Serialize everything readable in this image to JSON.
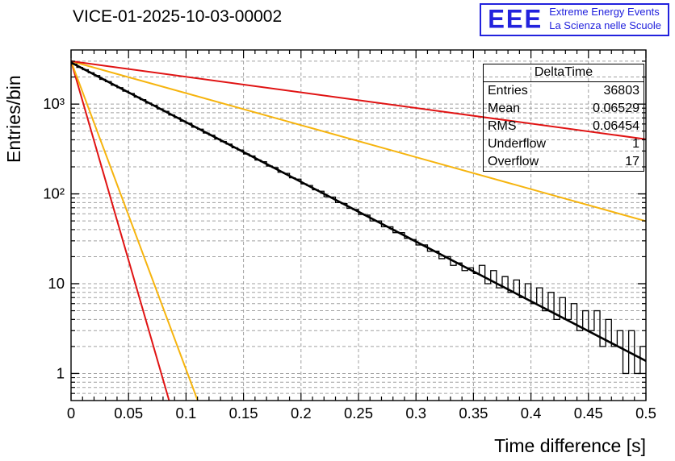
{
  "header": {
    "title": "VICE-01-2025-10-03-00002"
  },
  "logo": {
    "letters": "EEE",
    "line1": "Extreme Energy Events",
    "line2": "La Scienza nelle Scuole",
    "color": "#2222dd"
  },
  "stats": {
    "title": "DeltaTime",
    "rows": [
      {
        "label": "Entries",
        "value": "36803"
      },
      {
        "label": "Mean",
        "value": "0.06529"
      },
      {
        "label": "RMS",
        "value": "0.06454"
      },
      {
        "label": "Underflow",
        "value": "1"
      },
      {
        "label": "Overflow",
        "value": "17"
      }
    ]
  },
  "chart_data": {
    "type": "line",
    "title": "VICE-01-2025-10-03-00002",
    "xlabel": "Time difference [s]",
    "ylabel": "Entries/bin",
    "xlim": [
      0,
      0.5
    ],
    "ylim_log": [
      0.5,
      4000
    ],
    "grid": true,
    "x_ticks": [
      0,
      0.05,
      0.1,
      0.15,
      0.2,
      0.25,
      0.3,
      0.35,
      0.4,
      0.45,
      0.5
    ],
    "x_tick_labels": [
      "0",
      "0.05",
      "0.1",
      "0.15",
      "0.2",
      "0.25",
      "0.3",
      "0.35",
      "0.4",
      "0.45",
      "0.5"
    ],
    "y_tick_labels": [
      {
        "value": 1,
        "label": "1"
      },
      {
        "value": 10,
        "label": "10"
      },
      {
        "value": 100,
        "label": "10²"
      },
      {
        "value": 1000,
        "label": "10³"
      }
    ],
    "grid_color": "#a0a0a0",
    "histogram": {
      "name": "DeltaTime",
      "color": "#000000",
      "x_start": 0,
      "bin_width": 0.005,
      "values": [
        2785,
        2560,
        2410,
        2230,
        2075,
        1885,
        1775,
        1620,
        1520,
        1390,
        1310,
        1195,
        1120,
        1025,
        965,
        880,
        830,
        755,
        705,
        645,
        612,
        552,
        525,
        475,
        450,
        408,
        382,
        358,
        326,
        308,
        278,
        264,
        238,
        228,
        204,
        196,
        174,
        169,
        151,
        146,
        129,
        124,
        111,
        107,
        93,
        92,
        80,
        78,
        69,
        67,
        59,
        58,
        50,
        50,
        43,
        43,
        37,
        37,
        32,
        31,
        27,
        27,
        23,
        23,
        19,
        20,
        16,
        17,
        14,
        15,
        13,
        16,
        10,
        14,
        9,
        12,
        8,
        11,
        7,
        10,
        6,
        9,
        5,
        8,
        4,
        7,
        4,
        6,
        3,
        5,
        3,
        5,
        2,
        4,
        2,
        3,
        1,
        3,
        1,
        2
      ]
    },
    "fit_line": {
      "name": "exponential-fit",
      "color": "#000000",
      "width": 2.6,
      "amplitude": 2900,
      "decay_rate": 15.3
    },
    "reference_lines": [
      {
        "name": "red-steep",
        "color": "#e01313",
        "width": 2,
        "amplitude": 3000,
        "decay_rate": 102
      },
      {
        "name": "yellow-steep",
        "color": "#f6b40e",
        "width": 2,
        "amplitude": 3000,
        "decay_rate": 79
      },
      {
        "name": "yellow-shallow",
        "color": "#f6b40e",
        "width": 2,
        "amplitude": 3000,
        "decay_rate": 8.2
      },
      {
        "name": "red-shallow",
        "color": "#e01313",
        "width": 2,
        "amplitude": 3000,
        "decay_rate": 4.0
      }
    ]
  }
}
